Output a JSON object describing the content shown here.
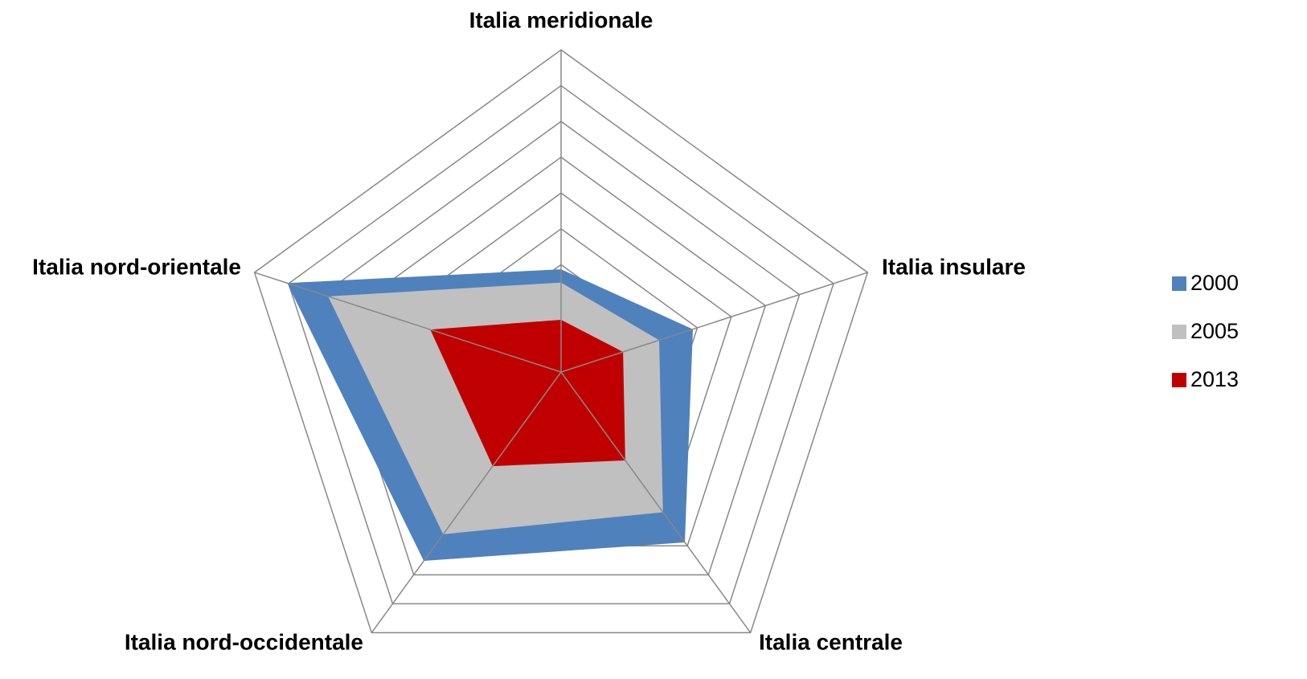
{
  "chart_data": {
    "type": "radar",
    "categories": [
      "Italia meridionale",
      "Italia insulare",
      "Italia centrale",
      "Italia nord-occidentale",
      "Italia nord-orientale"
    ],
    "series": [
      {
        "name": "2000",
        "color": "#4f81bd",
        "values": [
          2.87,
          3.87,
          5.88,
          6.52,
          8.04
        ]
      },
      {
        "name": "2005",
        "color": "#c0c0c0",
        "values": [
          2.5,
          2.88,
          4.84,
          5.6,
          6.84
        ]
      },
      {
        "name": "2013",
        "color": "#c00000",
        "values": [
          1.46,
          1.82,
          3.05,
          3.25,
          3.84
        ]
      }
    ],
    "rlim": [
      0,
      9
    ],
    "rticks": [
      1,
      2,
      3,
      4,
      5,
      6,
      7,
      8,
      9
    ],
    "grid": true,
    "legend": "right"
  }
}
